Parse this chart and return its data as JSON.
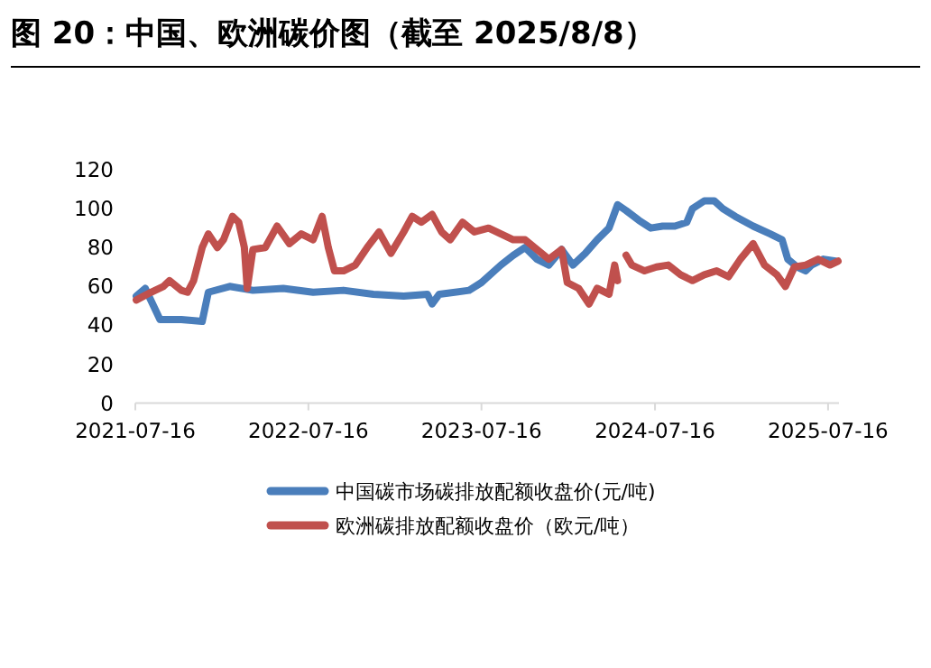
{
  "chart_data": {
    "type": "line",
    "title": "图 20：中国、欧洲碳价图（截至 2025/8/8）",
    "xlim": [
      "2021-07-16",
      "2025-08-08"
    ],
    "xticks": [
      "2021-07-16",
      "2022-07-16",
      "2023-07-16",
      "2024-07-16",
      "2025-07-16"
    ],
    "ylim": [
      0,
      120
    ],
    "yticks": [
      0,
      20,
      40,
      60,
      80,
      100,
      120
    ],
    "legend": "bottom",
    "series": [
      {
        "name": "中国碳市场碳排放配额收盘价(元/吨)",
        "color": "#4a7ebb",
        "x": [
          "2021-07-18",
          "2021-08-06",
          "2021-09-06",
          "2021-10-21",
          "2021-12-04",
          "2021-12-17",
          "2022-01-31",
          "2022-03-21",
          "2022-05-24",
          "2022-07-26",
          "2022-09-28",
          "2022-11-30",
          "2023-02-02",
          "2023-03-24",
          "2023-04-03",
          "2023-04-18",
          "2023-06-20",
          "2023-07-16",
          "2023-08-26",
          "2023-09-21",
          "2023-10-16",
          "2023-11-10",
          "2023-12-05",
          "2024-01-01",
          "2024-01-25",
          "2024-02-20",
          "2024-03-16",
          "2024-04-10",
          "2024-04-28",
          "2024-05-16",
          "2024-06-12",
          "2024-07-07",
          "2024-08-01",
          "2024-08-27",
          "2024-09-21",
          "2024-10-03",
          "2024-10-28",
          "2024-11-18",
          "2024-12-06",
          "2025-01-01",
          "2025-02-08",
          "2025-03-16",
          "2025-04-10",
          "2025-04-22",
          "2025-05-12",
          "2025-05-30",
          "2025-06-11",
          "2025-07-06",
          "2025-08-01"
        ],
        "values": [
          55,
          59,
          43,
          43,
          42,
          57,
          60,
          58,
          59,
          57,
          58,
          56,
          55,
          56,
          51,
          56,
          58,
          62,
          71,
          76,
          80,
          74,
          71,
          79,
          71,
          77,
          84,
          90,
          102,
          99,
          94,
          90,
          91,
          91,
          93,
          100,
          104,
          104,
          100,
          96,
          91,
          87,
          84,
          74,
          70,
          68,
          71,
          74,
          73
        ]
      },
      {
        "name": "欧洲碳排放配额收盘价（欧元/吨）",
        "color": "#c0504d",
        "x": [
          "2021-07-18",
          "2021-08-18",
          "2021-09-13",
          "2021-09-26",
          "2021-10-21",
          "2021-11-03",
          "2021-11-16",
          "2021-12-04",
          "2021-12-17",
          "2022-01-05",
          "2022-01-18",
          "2022-02-06",
          "2022-02-19",
          "2022-03-03",
          "2022-03-09",
          "2022-03-21",
          "2022-04-16",
          "2022-05-11",
          "2022-06-06",
          "2022-07-01",
          "2022-07-26",
          "2022-08-14",
          "2022-08-27",
          "2022-09-09",
          "2022-09-28",
          "2022-10-23",
          "2022-11-17",
          "2022-12-12",
          "2023-01-06",
          "2023-02-02",
          "2023-02-20",
          "2023-03-11",
          "2023-04-03",
          "2023-04-23",
          "2023-05-11",
          "2023-06-06",
          "2023-07-01",
          "2023-07-31",
          "2023-08-26",
          "2023-09-21",
          "2023-10-16",
          "2023-11-10",
          "2023-12-05",
          "2024-01-01",
          "2024-01-13",
          "2024-02-06",
          "2024-02-28",
          "2024-03-16",
          "2024-04-10",
          "2024-04-22",
          "2024-04-28",
          "2024-05-06",
          "2024-05-16",
          "2024-05-28",
          "2024-06-24",
          "2024-07-19",
          "2024-08-13",
          "2024-09-08",
          "2024-10-03",
          "2024-10-28",
          "2024-11-23",
          "2024-12-18",
          "2025-01-12",
          "2025-02-08",
          "2025-03-04",
          "2025-03-30",
          "2025-04-17",
          "2025-05-06",
          "2025-05-30",
          "2025-06-25",
          "2025-07-20",
          "2025-08-06"
        ],
        "values": [
          53,
          57,
          60,
          63,
          58,
          57,
          63,
          80,
          87,
          80,
          84,
          96,
          93,
          80,
          59,
          79,
          80,
          91,
          82,
          87,
          84,
          96,
          80,
          68,
          68,
          71,
          80,
          88,
          77,
          88,
          96,
          93,
          97,
          88,
          84,
          93,
          88,
          90,
          87,
          84,
          84,
          79,
          74,
          79,
          62,
          59,
          51,
          59,
          56,
          71,
          63,
          null,
          76,
          71,
          68,
          70,
          71,
          66,
          63,
          66,
          68,
          65,
          74,
          82,
          71,
          66,
          60,
          70,
          71,
          74,
          71,
          73
        ]
      }
    ]
  }
}
